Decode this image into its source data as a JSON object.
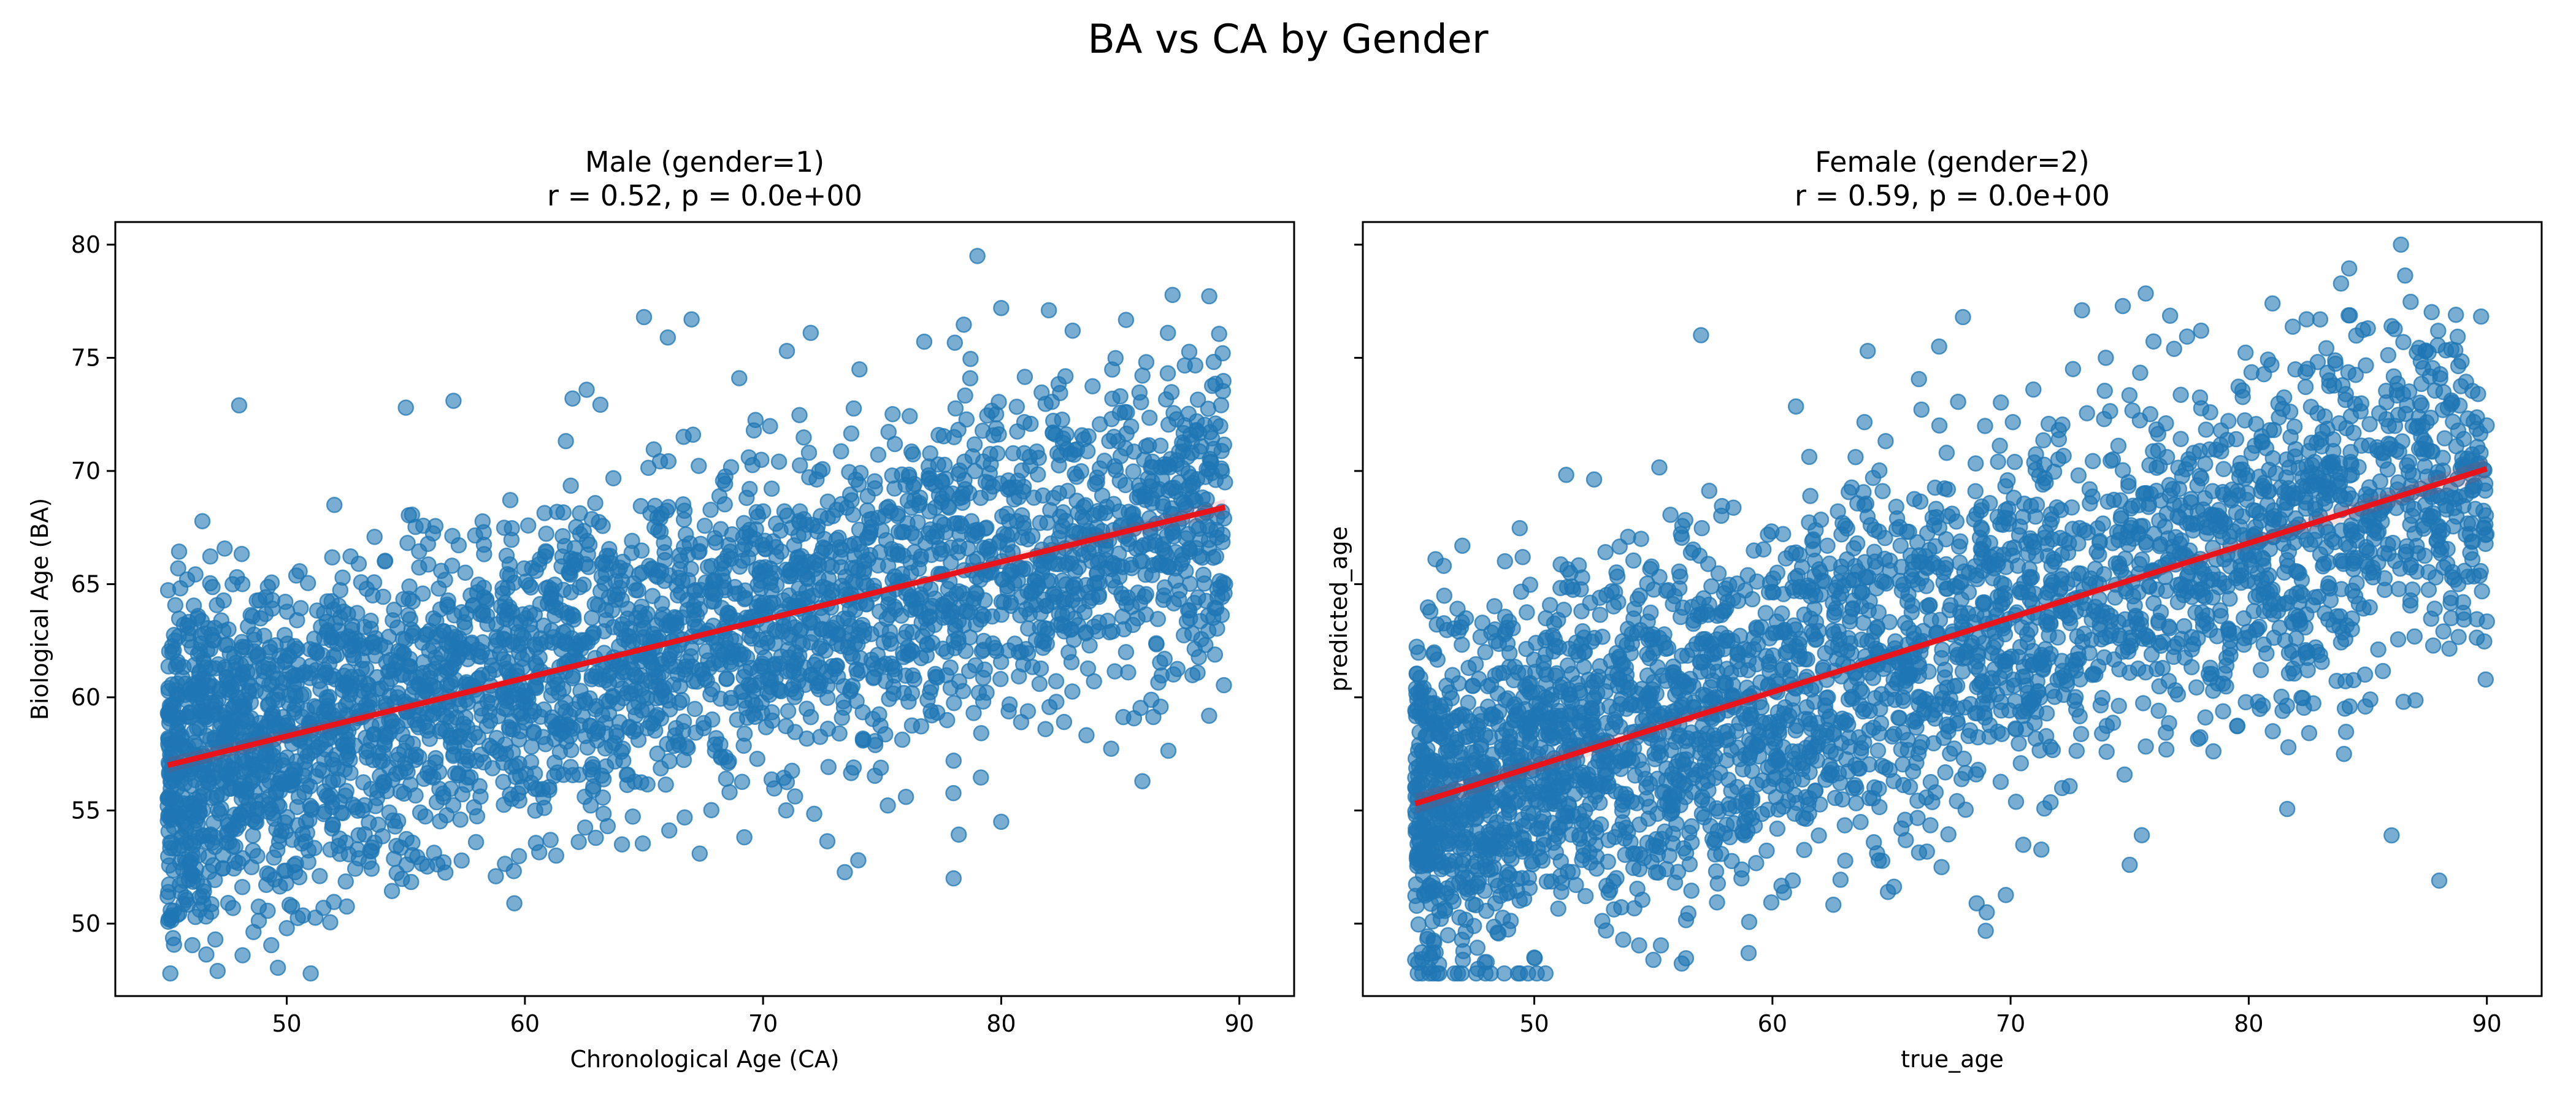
{
  "figure": {
    "suptitle": "BA vs CA by Gender",
    "colors": {
      "points": "#1f77b4",
      "regression": "#e8141b",
      "frame": "#000000"
    }
  },
  "chart_data": [
    {
      "type": "scatter",
      "title_lines": [
        "Male (gender=1)",
        "r = 0.52, p = 0.0e+00"
      ],
      "xlabel": "Chronological Age (CA)",
      "ylabel": "Biological Age (BA)",
      "xlim": [
        42.8,
        92.3
      ],
      "ylim": [
        46.8,
        81.0
      ],
      "xticks": [
        50,
        60,
        70,
        80,
        90
      ],
      "yticks": [
        50,
        55,
        60,
        65,
        70,
        75,
        80
      ],
      "show_ytick_labels": true,
      "grid": false,
      "regression": {
        "x": [
          45,
          89.4
        ],
        "y": [
          57.0,
          68.4
        ],
        "ci_halfwidth_at_end": 0.35
      },
      "sample_points": [
        [
          45,
          51.2
        ],
        [
          47,
          49.3
        ],
        [
          48,
          72.9
        ],
        [
          50,
          49.8
        ],
        [
          52,
          68.5
        ],
        [
          55,
          72.8
        ],
        [
          57,
          73.1
        ],
        [
          62,
          73.2
        ],
        [
          65,
          76.8
        ],
        [
          66,
          75.9
        ],
        [
          67,
          76.7
        ],
        [
          69,
          74.1
        ],
        [
          71,
          75.3
        ],
        [
          72,
          76.1
        ],
        [
          74,
          52.8
        ],
        [
          76,
          55.6
        ],
        [
          78,
          52.0
        ],
        [
          79,
          79.5
        ],
        [
          80,
          77.2
        ],
        [
          82,
          77.1
        ],
        [
          83,
          76.2
        ],
        [
          85,
          73.3
        ],
        [
          86,
          70.5
        ],
        [
          87,
          76.1
        ],
        [
          88,
          70.8
        ],
        [
          89.3,
          75.2
        ],
        [
          89.4,
          65.0
        ],
        [
          80,
          54.5
        ],
        [
          78,
          57.2
        ]
      ],
      "density": {
        "x_min": 45,
        "x_max": 89.4,
        "slope": 0.257,
        "intercept": 45.4,
        "spread": 3.6
      }
    },
    {
      "type": "scatter",
      "title_lines": [
        "Female (gender=2)",
        "r = 0.59, p = 0.0e+00"
      ],
      "xlabel": "true_age",
      "ylabel": "predicted_age",
      "xlim": [
        42.8,
        92.3
      ],
      "ylim": [
        46.8,
        81.0
      ],
      "xticks": [
        50,
        60,
        70,
        80,
        90
      ],
      "yticks": [
        50,
        55,
        60,
        65,
        70,
        75,
        80
      ],
      "show_ytick_labels": false,
      "grid": false,
      "regression": {
        "x": [
          45,
          90
        ],
        "y": [
          55.3,
          70.1
        ],
        "ci_halfwidth_at_end": 0.45
      },
      "sample_points": [
        [
          45,
          48.4
        ],
        [
          46,
          48.2
        ],
        [
          47,
          48.4
        ],
        [
          48,
          48.3
        ],
        [
          50,
          48.5
        ],
        [
          55,
          48.4
        ],
        [
          59,
          48.7
        ],
        [
          57,
          76.0
        ],
        [
          64,
          75.3
        ],
        [
          67,
          75.5
        ],
        [
          68,
          76.8
        ],
        [
          73,
          77.1
        ],
        [
          74,
          75.0
        ],
        [
          78,
          76.2
        ],
        [
          81,
          77.4
        ],
        [
          83,
          76.7
        ],
        [
          85,
          76.3
        ],
        [
          86,
          76.4
        ],
        [
          88.7,
          76.9
        ],
        [
          88,
          51.9
        ],
        [
          86,
          53.9
        ],
        [
          84,
          57.5
        ],
        [
          86.5,
          59.8
        ],
        [
          75,
          52.6
        ],
        [
          69,
          50.5
        ],
        [
          89.6,
          70.3
        ],
        [
          89,
          64.2
        ],
        [
          88.5,
          63.5
        ]
      ],
      "density": {
        "x_min": 45,
        "x_max": 90,
        "slope": 0.329,
        "intercept": 40.5,
        "spread": 4.0
      }
    }
  ]
}
